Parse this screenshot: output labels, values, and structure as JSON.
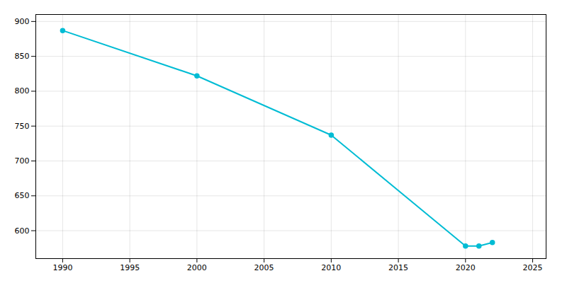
{
  "chart_data": {
    "type": "line",
    "x": [
      1990,
      2000,
      2010,
      2020,
      2021,
      2022
    ],
    "values": [
      887,
      822,
      737,
      578,
      578,
      583
    ],
    "color": "#00bcd4",
    "marker": "circle",
    "xlim": [
      1988,
      2026
    ],
    "ylim": [
      560,
      910
    ],
    "xticks": [
      1990,
      1995,
      2000,
      2005,
      2010,
      2015,
      2020,
      2025
    ],
    "yticks": [
      600,
      650,
      700,
      750,
      800,
      850,
      900
    ],
    "grid": true
  }
}
